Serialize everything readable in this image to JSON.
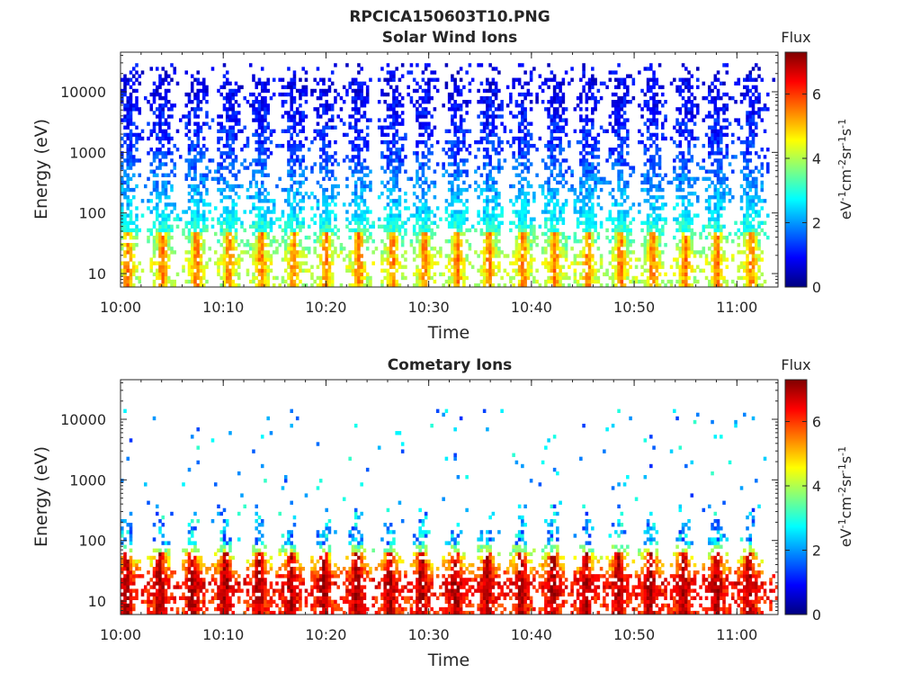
{
  "figure": {
    "filename": "RPCICA150603T10.PNG"
  },
  "chart_data": [
    {
      "type": "heatmap",
      "title": "Solar Wind Ions",
      "xlabel": "Time",
      "ylabel": "Energy (eV)",
      "y_scale": "log",
      "xlim": [
        "10:00",
        "11:04"
      ],
      "ylim": [
        6,
        45000
      ],
      "x_ticks": [
        "10:00",
        "10:10",
        "10:20",
        "10:30",
        "10:40",
        "10:50",
        "11:00"
      ],
      "y_ticks": [
        "10",
        "100",
        "1000",
        "10000"
      ],
      "colorbar": {
        "label": "Flux",
        "unit": "eV-1cm-2sr-1s-1",
        "range": [
          0,
          7.3
        ],
        "ticks": [
          "0",
          "2",
          "4",
          "6"
        ],
        "colormap": "jet"
      },
      "burst_times_min": [
        0.7,
        4.1,
        7.4,
        10.6,
        13.7,
        16.9,
        20.0,
        23.2,
        26.5,
        29.6,
        32.8,
        35.9,
        39.2,
        42.3,
        45.5,
        48.7,
        51.8,
        55.0,
        58.1,
        61.4
      ],
      "burst_profile": [
        {
          "energy_eV": 8,
          "flux": 4.0
        },
        {
          "energy_eV": 15,
          "flux": 4.3
        },
        {
          "energy_eV": 30,
          "flux": 3.6
        },
        {
          "energy_eV": 100,
          "flux": 2.5
        },
        {
          "energy_eV": 1000,
          "flux": 1.3
        },
        {
          "energy_eV": 10000,
          "flux": 0.8
        }
      ],
      "burst_peak_flux": 5.5,
      "max_energy_eV": 30000
    },
    {
      "type": "heatmap",
      "title": "Cometary Ions",
      "xlabel": "Time",
      "ylabel": "Energy (eV)",
      "y_scale": "log",
      "xlim": [
        "10:00",
        "11:04"
      ],
      "ylim": [
        6,
        45000
      ],
      "x_ticks": [
        "10:00",
        "10:10",
        "10:20",
        "10:30",
        "10:40",
        "10:50",
        "11:00"
      ],
      "y_ticks": [
        "10",
        "100",
        "1000",
        "10000"
      ],
      "colorbar": {
        "label": "Flux",
        "unit": "eV-1cm-2sr-1s-1",
        "range": [
          0,
          7.3
        ],
        "ticks": [
          "0",
          "2",
          "4",
          "6"
        ],
        "colormap": "jet"
      },
      "burst_times_min": [
        0.6,
        3.8,
        7.0,
        10.2,
        13.5,
        16.6,
        19.8,
        23.0,
        26.2,
        29.3,
        32.6,
        35.7,
        39.0,
        42.1,
        45.3,
        48.5,
        51.6,
        54.8,
        58.0,
        61.2
      ],
      "burst_profile": [
        {
          "energy_eV": 8,
          "flux": 6.0
        },
        {
          "energy_eV": 20,
          "flux": 6.5
        },
        {
          "energy_eV": 40,
          "flux": 5.0
        },
        {
          "energy_eV": 100,
          "flux": 3.0
        },
        {
          "energy_eV": 300,
          "flux": 2.0
        },
        {
          "energy_eV": 1000,
          "flux": 1.0
        }
      ],
      "burst_peak_flux": 7.0,
      "max_energy_eV": 15000
    }
  ]
}
